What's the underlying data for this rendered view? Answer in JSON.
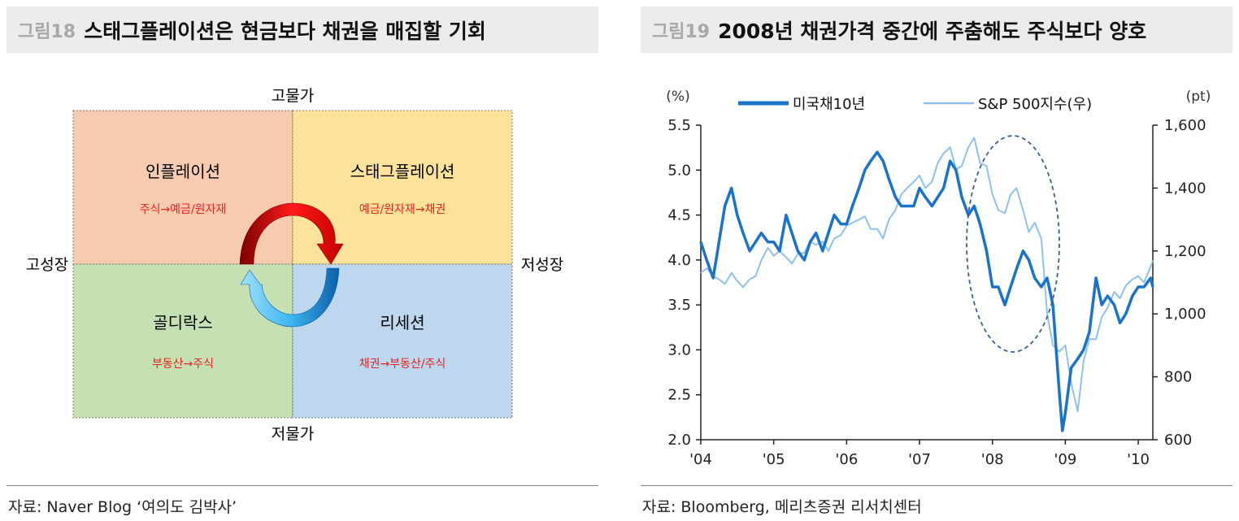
{
  "left": {
    "fig_num": "그림18",
    "title": "스태그플레이션은 현금보다 채권을 매집할 기회",
    "axis": {
      "top": "고물가",
      "bottom": "저물가",
      "left": "고성장",
      "right": "저성장"
    },
    "quadrants": [
      {
        "name": "인플레이션",
        "flow": "주식→예금/원자재",
        "color": "#f7cbb0"
      },
      {
        "name": "스태그플레이션",
        "flow": "예금/원자재→채권",
        "color": "#fde39a"
      },
      {
        "name": "골디락스",
        "flow": "부동산→주식",
        "color": "#c5e0b3"
      },
      {
        "name": "리세션",
        "flow": "채권→부동산/주식",
        "color": "#bdd7ee"
      }
    ],
    "source": "자료: Naver Blog ‘여의도 김박사’"
  },
  "right": {
    "fig_num": "그림19",
    "title": "2008년 채권가격 중간에 주춤해도 주식보다 양호",
    "source": "자료: Bloomberg, 메리츠증권 리서치센터"
  },
  "chart_data": {
    "type": "line",
    "left_unit": "(%)",
    "right_unit": "(pt)",
    "x_ticks": [
      "'04",
      "'05",
      "'06",
      "'07",
      "'08",
      "'09",
      "'10"
    ],
    "x_range": [
      2004.0,
      2010.2
    ],
    "y_left": {
      "range": [
        2.0,
        5.5
      ],
      "ticks": [
        "2.0",
        "2.5",
        "3.0",
        "3.5",
        "4.0",
        "4.5",
        "5.0",
        "5.5"
      ]
    },
    "y_right": {
      "range": [
        600,
        1600
      ],
      "ticks": [
        "600",
        "800",
        "1,000",
        "1,200",
        "1,400",
        "1,600"
      ]
    },
    "legend_position": "top",
    "series": [
      {
        "name": "미국채10년",
        "axis": "left",
        "color": "#1a73c9",
        "points": [
          [
            2004.0,
            4.2
          ],
          [
            2004.08,
            4.0
          ],
          [
            2004.17,
            3.8
          ],
          [
            2004.25,
            4.2
          ],
          [
            2004.33,
            4.6
          ],
          [
            2004.42,
            4.8
          ],
          [
            2004.5,
            4.5
          ],
          [
            2004.58,
            4.3
          ],
          [
            2004.67,
            4.1
          ],
          [
            2004.75,
            4.2
          ],
          [
            2004.83,
            4.3
          ],
          [
            2004.92,
            4.2
          ],
          [
            2005.0,
            4.2
          ],
          [
            2005.08,
            4.1
          ],
          [
            2005.17,
            4.5
          ],
          [
            2005.25,
            4.3
          ],
          [
            2005.33,
            4.1
          ],
          [
            2005.42,
            4.0
          ],
          [
            2005.5,
            4.2
          ],
          [
            2005.58,
            4.3
          ],
          [
            2005.67,
            4.1
          ],
          [
            2005.75,
            4.3
          ],
          [
            2005.83,
            4.5
          ],
          [
            2005.92,
            4.4
          ],
          [
            2006.0,
            4.4
          ],
          [
            2006.08,
            4.6
          ],
          [
            2006.17,
            4.8
          ],
          [
            2006.25,
            5.0
          ],
          [
            2006.33,
            5.1
          ],
          [
            2006.42,
            5.2
          ],
          [
            2006.5,
            5.1
          ],
          [
            2006.58,
            4.9
          ],
          [
            2006.67,
            4.7
          ],
          [
            2006.75,
            4.6
          ],
          [
            2006.83,
            4.6
          ],
          [
            2006.92,
            4.6
          ],
          [
            2007.0,
            4.8
          ],
          [
            2007.08,
            4.7
          ],
          [
            2007.17,
            4.6
          ],
          [
            2007.25,
            4.7
          ],
          [
            2007.33,
            4.8
          ],
          [
            2007.42,
            5.1
          ],
          [
            2007.5,
            5.0
          ],
          [
            2007.58,
            4.7
          ],
          [
            2007.67,
            4.5
          ],
          [
            2007.75,
            4.6
          ],
          [
            2007.83,
            4.4
          ],
          [
            2007.92,
            4.1
          ],
          [
            2008.0,
            3.7
          ],
          [
            2008.08,
            3.7
          ],
          [
            2008.17,
            3.5
          ],
          [
            2008.25,
            3.7
          ],
          [
            2008.33,
            3.9
          ],
          [
            2008.42,
            4.1
          ],
          [
            2008.5,
            4.0
          ],
          [
            2008.58,
            3.8
          ],
          [
            2008.67,
            3.7
          ],
          [
            2008.75,
            3.8
          ],
          [
            2008.83,
            3.5
          ],
          [
            2008.92,
            2.5
          ],
          [
            2008.96,
            2.1
          ],
          [
            2009.0,
            2.3
          ],
          [
            2009.08,
            2.8
          ],
          [
            2009.17,
            2.9
          ],
          [
            2009.25,
            3.0
          ],
          [
            2009.33,
            3.2
          ],
          [
            2009.42,
            3.8
          ],
          [
            2009.5,
            3.5
          ],
          [
            2009.58,
            3.6
          ],
          [
            2009.67,
            3.5
          ],
          [
            2009.75,
            3.3
          ],
          [
            2009.83,
            3.4
          ],
          [
            2009.92,
            3.6
          ],
          [
            2010.0,
            3.7
          ],
          [
            2010.08,
            3.7
          ],
          [
            2010.17,
            3.8
          ],
          [
            2010.2,
            3.7
          ]
        ]
      },
      {
        "name": "S&P 500지수(우)",
        "axis": "right",
        "color": "#8fc1ee",
        "points": [
          [
            2004.0,
            1130
          ],
          [
            2004.08,
            1145
          ],
          [
            2004.17,
            1120
          ],
          [
            2004.25,
            1110
          ],
          [
            2004.33,
            1095
          ],
          [
            2004.42,
            1130
          ],
          [
            2004.5,
            1105
          ],
          [
            2004.58,
            1085
          ],
          [
            2004.67,
            1110
          ],
          [
            2004.75,
            1120
          ],
          [
            2004.83,
            1170
          ],
          [
            2004.92,
            1210
          ],
          [
            2005.0,
            1185
          ],
          [
            2005.08,
            1200
          ],
          [
            2005.17,
            1180
          ],
          [
            2005.25,
            1160
          ],
          [
            2005.33,
            1190
          ],
          [
            2005.42,
            1195
          ],
          [
            2005.5,
            1230
          ],
          [
            2005.58,
            1220
          ],
          [
            2005.67,
            1230
          ],
          [
            2005.75,
            1200
          ],
          [
            2005.83,
            1240
          ],
          [
            2005.92,
            1250
          ],
          [
            2006.0,
            1280
          ],
          [
            2006.08,
            1290
          ],
          [
            2006.17,
            1300
          ],
          [
            2006.25,
            1310
          ],
          [
            2006.33,
            1270
          ],
          [
            2006.42,
            1270
          ],
          [
            2006.5,
            1240
          ],
          [
            2006.58,
            1300
          ],
          [
            2006.67,
            1330
          ],
          [
            2006.75,
            1380
          ],
          [
            2006.83,
            1400
          ],
          [
            2006.92,
            1420
          ],
          [
            2007.0,
            1440
          ],
          [
            2007.08,
            1400
          ],
          [
            2007.17,
            1420
          ],
          [
            2007.25,
            1480
          ],
          [
            2007.33,
            1510
          ],
          [
            2007.42,
            1530
          ],
          [
            2007.5,
            1460
          ],
          [
            2007.58,
            1470
          ],
          [
            2007.67,
            1530
          ],
          [
            2007.75,
            1560
          ],
          [
            2007.83,
            1480
          ],
          [
            2007.92,
            1470
          ],
          [
            2008.0,
            1380
          ],
          [
            2008.08,
            1330
          ],
          [
            2008.17,
            1320
          ],
          [
            2008.25,
            1380
          ],
          [
            2008.33,
            1400
          ],
          [
            2008.42,
            1330
          ],
          [
            2008.5,
            1260
          ],
          [
            2008.58,
            1290
          ],
          [
            2008.67,
            1240
          ],
          [
            2008.75,
            1000
          ],
          [
            2008.83,
            900
          ],
          [
            2008.92,
            880
          ],
          [
            2009.0,
            900
          ],
          [
            2009.08,
            780
          ],
          [
            2009.17,
            690
          ],
          [
            2009.25,
            850
          ],
          [
            2009.33,
            920
          ],
          [
            2009.42,
            920
          ],
          [
            2009.5,
            990
          ],
          [
            2009.58,
            1020
          ],
          [
            2009.67,
            1070
          ],
          [
            2009.75,
            1050
          ],
          [
            2009.83,
            1090
          ],
          [
            2009.92,
            1110
          ],
          [
            2010.0,
            1120
          ],
          [
            2010.08,
            1100
          ],
          [
            2010.17,
            1150
          ],
          [
            2010.2,
            1170
          ]
        ]
      }
    ]
  }
}
